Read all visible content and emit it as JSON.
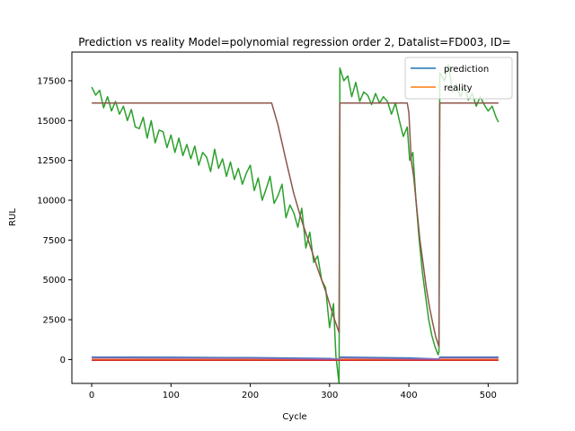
{
  "chart_data": {
    "type": "line",
    "title": "Prediction vs reality Model=polynomial regression order 2, Datalist=FD003, ID=",
    "xlabel": "Cycle",
    "ylabel": "RUL",
    "xlim": [
      -25,
      537
    ],
    "ylim": [
      -1500,
      19300
    ],
    "xticks": [
      0,
      100,
      200,
      300,
      400,
      500
    ],
    "yticks": [
      0,
      2500,
      5000,
      7500,
      10000,
      12500,
      15000,
      17500
    ],
    "legend": {
      "placement": "top-right",
      "entries": [
        "prediction",
        "reality"
      ]
    },
    "grid": false,
    "series": [
      {
        "name": "prediction",
        "color": "#1f77b4",
        "x": [
          0,
          100,
          200,
          300,
          312,
          313,
          400,
          438,
          439,
          513
        ],
        "y": [
          150,
          140,
          120,
          60,
          20,
          150,
          100,
          30,
          150,
          150
        ]
      },
      {
        "name": "reality",
        "color": "#ff7f0e",
        "x": [
          0,
          513
        ],
        "y": [
          0,
          0
        ]
      },
      {
        "color": "#2ca02c",
        "x": [
          0,
          5,
          10,
          15,
          20,
          25,
          30,
          35,
          40,
          45,
          50,
          55,
          60,
          65,
          70,
          75,
          80,
          85,
          90,
          95,
          100,
          105,
          110,
          115,
          120,
          125,
          130,
          135,
          140,
          145,
          150,
          155,
          160,
          165,
          170,
          175,
          180,
          185,
          190,
          195,
          200,
          205,
          210,
          215,
          220,
          225,
          230,
          235,
          240,
          245,
          250,
          255,
          260,
          265,
          270,
          275,
          280,
          285,
          290,
          295,
          300,
          305,
          308,
          312,
          313,
          318,
          323,
          328,
          333,
          338,
          343,
          348,
          353,
          358,
          363,
          368,
          373,
          378,
          383,
          388,
          393,
          398,
          401,
          405,
          409,
          413,
          417,
          421,
          425,
          429,
          433,
          437,
          438,
          439,
          445,
          450,
          455,
          460,
          465,
          470,
          475,
          480,
          485,
          490,
          495,
          500,
          505,
          510,
          513
        ],
        "y": [
          17100,
          16600,
          16900,
          15800,
          16500,
          15600,
          16200,
          15400,
          15900,
          15000,
          15700,
          14600,
          14500,
          15200,
          13900,
          15000,
          13600,
          14400,
          14300,
          13300,
          14100,
          13000,
          13900,
          12800,
          13500,
          12600,
          13400,
          12200,
          13000,
          12700,
          11800,
          13200,
          12000,
          12600,
          11500,
          12400,
          11300,
          12000,
          11000,
          11700,
          12200,
          10600,
          11400,
          10000,
          10700,
          11500,
          9800,
          10300,
          11000,
          8900,
          9700,
          9200,
          8300,
          9500,
          7000,
          8000,
          6100,
          6500,
          5000,
          4500,
          2000,
          3500,
          200,
          -1500,
          18300,
          17500,
          17800,
          16500,
          17400,
          16200,
          16800,
          16600,
          16000,
          16700,
          16100,
          16500,
          16200,
          15400,
          16100,
          15000,
          14000,
          14600,
          12500,
          13000,
          10000,
          7500,
          5500,
          4000,
          2500,
          1500,
          800,
          300,
          500,
          18000,
          17500,
          18500,
          16800,
          17300,
          16500,
          17100,
          16300,
          16700,
          15900,
          16500,
          16000,
          15600,
          15900,
          15200,
          14900
        ]
      },
      {
        "color": "#d62728",
        "x": [
          0,
          513
        ],
        "y": [
          -50,
          -50
        ]
      },
      {
        "color": "#9467bd",
        "x": [
          0,
          200,
          312,
          313,
          438,
          439,
          513
        ],
        "y": [
          100,
          80,
          20,
          100,
          20,
          100,
          100
        ]
      },
      {
        "color": "#8c564b",
        "x": [
          0,
          227,
          235,
          245,
          255,
          265,
          275,
          285,
          295,
          305,
          312,
          313,
          398,
          400,
          403,
          406,
          410,
          414,
          418,
          422,
          426,
          430,
          434,
          438,
          439,
          513
        ],
        "y": [
          16100,
          16100,
          14700,
          12500,
          10400,
          8700,
          7200,
          5700,
          4300,
          2700,
          1700,
          16100,
          16100,
          15500,
          12500,
          11500,
          9500,
          7500,
          6000,
          4500,
          3300,
          2300,
          1400,
          800,
          16100,
          16100
        ]
      }
    ]
  }
}
